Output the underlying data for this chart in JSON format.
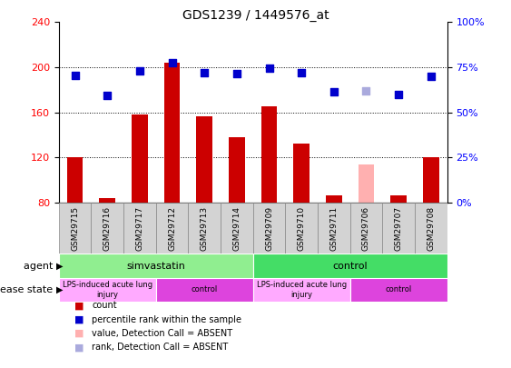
{
  "title": "GDS1239 / 1449576_at",
  "samples": [
    "GSM29715",
    "GSM29716",
    "GSM29717",
    "GSM29712",
    "GSM29713",
    "GSM29714",
    "GSM29709",
    "GSM29710",
    "GSM29711",
    "GSM29706",
    "GSM29707",
    "GSM29708"
  ],
  "bar_values": [
    120,
    84,
    158,
    204,
    156,
    138,
    165,
    132,
    86,
    114,
    86,
    120
  ],
  "bar_colors": [
    "#cc0000",
    "#cc0000",
    "#cc0000",
    "#cc0000",
    "#cc0000",
    "#cc0000",
    "#cc0000",
    "#cc0000",
    "#cc0000",
    "#ffb0b0",
    "#cc0000",
    "#cc0000"
  ],
  "dot_values": [
    193,
    175,
    197,
    204,
    195,
    194,
    199,
    195,
    178,
    179,
    176,
    192
  ],
  "dot_colors": [
    "#0000cc",
    "#0000cc",
    "#0000cc",
    "#0000cc",
    "#0000cc",
    "#0000cc",
    "#0000cc",
    "#0000cc",
    "#0000cc",
    "#aaaadd",
    "#0000cc",
    "#0000cc"
  ],
  "ylim_left": [
    80,
    240
  ],
  "ylim_right": [
    0,
    100
  ],
  "yticks_left": [
    80,
    120,
    160,
    200,
    240
  ],
  "yticks_right": [
    0,
    25,
    50,
    75,
    100
  ],
  "agent_groups": [
    {
      "label": "simvastatin",
      "start": 0,
      "end": 6,
      "color": "#90ee90"
    },
    {
      "label": "control",
      "start": 6,
      "end": 12,
      "color": "#44dd66"
    }
  ],
  "disease_groups": [
    {
      "label": "LPS-induced acute lung\ninjury",
      "start": 0,
      "end": 3,
      "color": "#ffaaff"
    },
    {
      "label": "control",
      "start": 3,
      "end": 6,
      "color": "#dd44dd"
    },
    {
      "label": "LPS-induced acute lung\ninjury",
      "start": 6,
      "end": 9,
      "color": "#ffaaff"
    },
    {
      "label": "control",
      "start": 9,
      "end": 12,
      "color": "#dd44dd"
    }
  ],
  "agent_label": "agent",
  "disease_label": "disease state",
  "legend_items": [
    {
      "label": "count",
      "color": "#cc0000"
    },
    {
      "label": "percentile rank within the sample",
      "color": "#0000cc"
    },
    {
      "label": "value, Detection Call = ABSENT",
      "color": "#ffb0b0"
    },
    {
      "label": "rank, Detection Call = ABSENT",
      "color": "#aaaadd"
    }
  ],
  "bar_width": 0.5,
  "dot_size": 28
}
